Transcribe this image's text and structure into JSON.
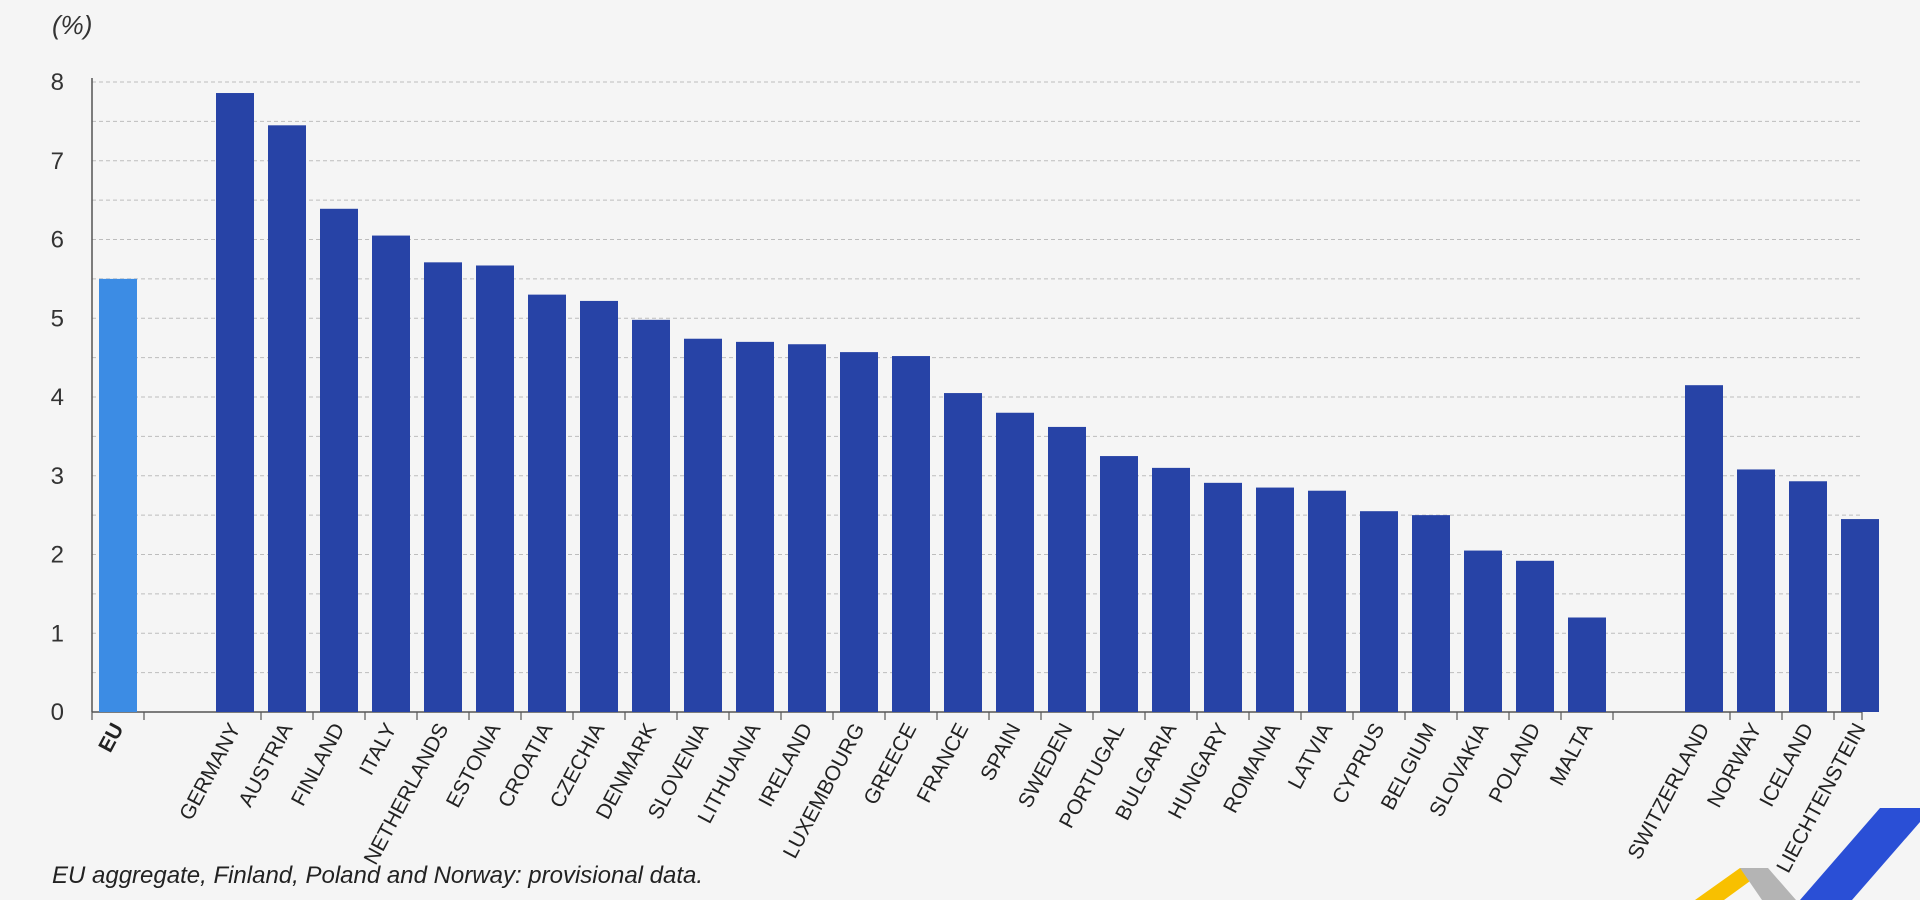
{
  "unit_label": "(%)",
  "footnote": "EU aggregate, Finland, Poland and Norway: provisional data.",
  "colors": {
    "eu_bar": "#3c8ce4",
    "country_bar": "#2743a6",
    "logo_yellow": "#f8c000",
    "logo_grey": "#b4b4b4",
    "logo_blue": "#2a4fd6"
  },
  "logo": {
    "icon": "eurostat-logo-icon"
  },
  "chart_data": {
    "type": "bar",
    "title": "",
    "xlabel": "",
    "ylabel": "(%)",
    "ylim": [
      0,
      8
    ],
    "yticks": [
      0,
      1,
      2,
      3,
      4,
      5,
      6,
      7,
      8
    ],
    "grid": true,
    "groups": [
      {
        "group": "eu",
        "categories": [
          "EU"
        ],
        "values": [
          5.5
        ]
      },
      {
        "group": "member-states",
        "categories": [
          "GERMANY",
          "AUSTRIA",
          "FINLAND",
          "ITALY",
          "NETHERLANDS",
          "ESTONIA",
          "CROATIA",
          "CZECHIA",
          "DENMARK",
          "SLOVENIA",
          "LITHUANIA",
          "IRELAND",
          "LUXEMBOURG",
          "GREECE",
          "FRANCE",
          "SPAIN",
          "SWEDEN",
          "PORTUGAL",
          "BULGARIA",
          "HUNGARY",
          "ROMANIA",
          "LATVIA",
          "CYPRUS",
          "BELGIUM",
          "SLOVAKIA",
          "POLAND",
          "MALTA"
        ],
        "values": [
          7.86,
          7.45,
          6.39,
          6.05,
          5.71,
          5.67,
          5.3,
          5.22,
          4.98,
          4.74,
          4.7,
          4.67,
          4.57,
          4.52,
          4.05,
          3.8,
          3.62,
          3.25,
          3.1,
          2.91,
          2.85,
          2.81,
          2.55,
          2.5,
          2.05,
          1.92,
          1.2
        ]
      },
      {
        "group": "efta",
        "categories": [
          "SWITZERLAND",
          "NORWAY",
          "ICELAND",
          "LIECHTENSTEIN"
        ],
        "values": [
          4.15,
          3.08,
          2.93,
          2.45
        ]
      }
    ]
  }
}
